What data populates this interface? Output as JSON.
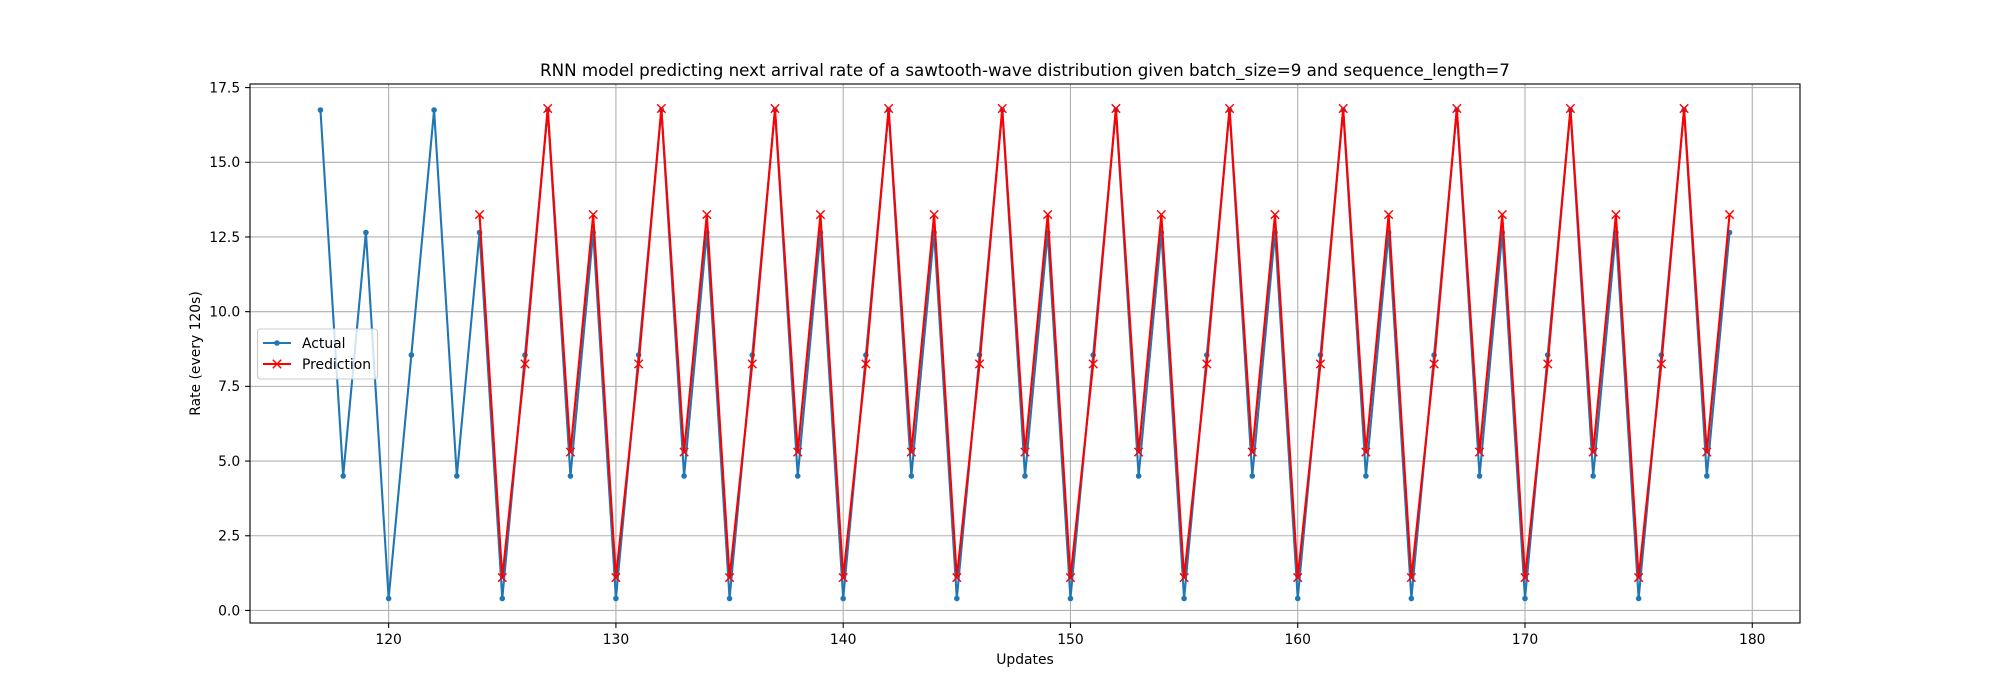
{
  "chart_data": {
    "type": "line",
    "title": "RNN model predicting next arrival rate of a sawtooth-wave distribution given batch_size=9 and sequence_length=7",
    "xlabel": "Updates",
    "ylabel": "Rate (every 120s)",
    "xlim": [
      113.9,
      182.1
    ],
    "ylim": [
      -0.42,
      17.62
    ],
    "xticks": [
      120,
      130,
      140,
      150,
      160,
      170,
      180
    ],
    "xtick_labels": [
      "120",
      "130",
      "140",
      "150",
      "160",
      "170",
      "180"
    ],
    "yticks": [
      0,
      2.5,
      5,
      7.5,
      10,
      12.5,
      15,
      17.5
    ],
    "ytick_labels": [
      "0.0",
      "2.5",
      "5.0",
      "7.5",
      "10.0",
      "12.5",
      "15.0",
      "17.5"
    ],
    "grid": true,
    "legend_position": "center-left",
    "series": [
      {
        "name": "Actual",
        "color": "#1f77b4",
        "marker": "dot",
        "x": [
          117,
          118,
          119,
          120,
          121,
          122,
          123,
          124,
          125,
          126,
          127,
          128,
          129,
          130,
          131,
          132,
          133,
          134,
          135,
          136,
          137,
          138,
          139,
          140,
          141,
          142,
          143,
          144,
          145,
          146,
          147,
          148,
          149,
          150,
          151,
          152,
          153,
          154,
          155,
          156,
          157,
          158,
          159,
          160,
          161,
          162,
          163,
          164,
          165,
          166,
          167,
          168,
          169,
          170,
          171,
          172,
          173,
          174,
          175,
          176,
          177,
          178,
          179
        ],
        "y": [
          16.75,
          4.5,
          12.65,
          0.4,
          8.55,
          16.75,
          4.5,
          12.65,
          0.4,
          8.55,
          16.75,
          4.5,
          12.65,
          0.4,
          8.55,
          16.75,
          4.5,
          12.65,
          0.4,
          8.55,
          16.75,
          4.5,
          12.65,
          0.4,
          8.55,
          16.75,
          4.5,
          12.65,
          0.4,
          8.55,
          16.75,
          4.5,
          12.65,
          0.4,
          8.55,
          16.75,
          4.5,
          12.65,
          0.4,
          8.55,
          16.75,
          4.5,
          12.65,
          0.4,
          8.55,
          16.75,
          4.5,
          12.65,
          0.4,
          8.55,
          16.75,
          4.5,
          12.65,
          0.4,
          8.55,
          16.75,
          4.5,
          12.65,
          0.4,
          8.55,
          16.75,
          4.5,
          12.65
        ]
      },
      {
        "name": "Prediction",
        "color": "#ff0000",
        "marker": "x",
        "x": [
          124,
          125,
          126,
          127,
          128,
          129,
          130,
          131,
          132,
          133,
          134,
          135,
          136,
          137,
          138,
          139,
          140,
          141,
          142,
          143,
          144,
          145,
          146,
          147,
          148,
          149,
          150,
          151,
          152,
          153,
          154,
          155,
          156,
          157,
          158,
          159,
          160,
          161,
          162,
          163,
          164,
          165,
          166,
          167,
          168,
          169,
          170,
          171,
          172,
          173,
          174,
          175,
          176,
          177,
          178,
          179
        ],
        "y": [
          13.25,
          1.1,
          8.25,
          16.8,
          5.3,
          13.25,
          1.1,
          8.25,
          16.8,
          5.3,
          13.25,
          1.1,
          8.25,
          16.8,
          5.3,
          13.25,
          1.1,
          8.25,
          16.8,
          5.3,
          13.25,
          1.1,
          8.25,
          16.8,
          5.3,
          13.25,
          1.1,
          8.25,
          16.8,
          5.3,
          13.25,
          1.1,
          8.25,
          16.8,
          5.3,
          13.25,
          1.1,
          8.25,
          16.8,
          5.3,
          13.25,
          1.1,
          8.25,
          16.8,
          5.3,
          13.25,
          1.1,
          8.25,
          16.8,
          5.3,
          13.25,
          1.1,
          8.25,
          16.8,
          5.3,
          13.25
        ]
      }
    ]
  }
}
